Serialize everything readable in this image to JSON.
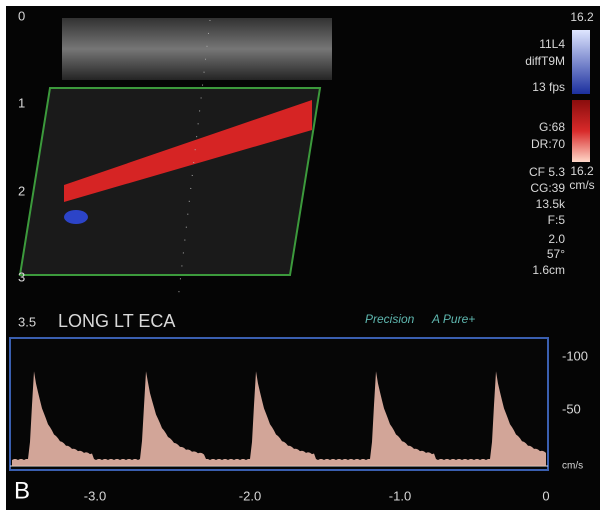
{
  "depth_markers": [
    "0",
    "1",
    "2",
    "3",
    "3.5"
  ],
  "settings": [
    "11L4",
    "diffT9M",
    "13 fps",
    "G:68",
    "DR:70",
    "CF 5.3",
    "CG:39",
    "13.5k",
    "F:5",
    "2.0",
    "57°",
    "1.6cm"
  ],
  "color_scale": {
    "top": "16.2",
    "bottom": "16.2",
    "unit": "cm/s"
  },
  "label": "LONG LT ECA",
  "branding": {
    "precision": "Precision",
    "pure": "A Pure+"
  },
  "spectral": {
    "scale": [
      "-100",
      "-50",
      "cm/s"
    ],
    "time": [
      "-3.0",
      "-2.0",
      "-1.0",
      "0"
    ]
  },
  "panel_letter": "B"
}
